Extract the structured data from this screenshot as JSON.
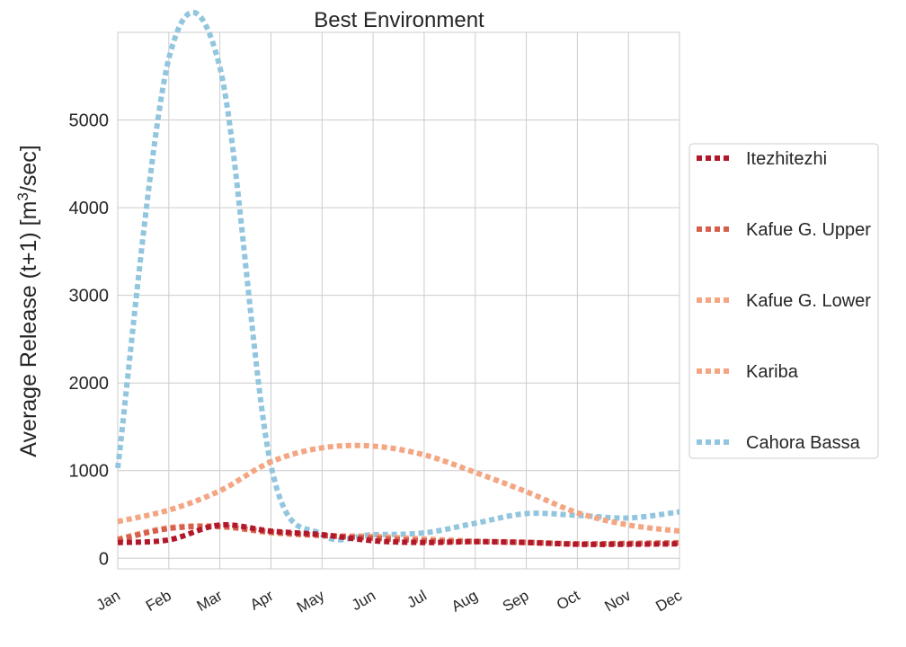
{
  "chart_data": {
    "type": "line",
    "title": "Best Environment",
    "ylabel_main": "Average Release (t+1) [m",
    "ylabel_sup": "3",
    "ylabel_end": "/sec]",
    "xlabel": "",
    "categories": [
      "Jan",
      "Feb",
      "Mar",
      "Apr",
      "May",
      "Jun",
      "Jul",
      "Aug",
      "Sep",
      "Oct",
      "Nov",
      "Dec"
    ],
    "yticks": [
      0,
      1000,
      2000,
      3000,
      4000,
      5000
    ],
    "ylim": [
      -120,
      6000
    ],
    "grid": true,
    "legend_position": "right",
    "line_style": "dotted",
    "series": [
      {
        "name": "Itezhitezhi",
        "color": "#b2182b",
        "values": [
          180,
          210,
          380,
          310,
          270,
          200,
          180,
          190,
          180,
          160,
          160,
          165
        ]
      },
      {
        "name": "Kafue G. Upper",
        "color": "#d6604d",
        "values": [
          210,
          340,
          360,
          300,
          260,
          230,
          200,
          190,
          180,
          165,
          170,
          175
        ]
      },
      {
        "name": "Kafue G. Lower",
        "color": "#f4a582",
        "values": [
          220,
          350,
          365,
          290,
          260,
          250,
          220,
          195,
          185,
          165,
          170,
          180
        ]
      },
      {
        "name": "Kariba",
        "color": "#f4a582",
        "values": [
          420,
          550,
          770,
          1100,
          1260,
          1280,
          1180,
          980,
          760,
          520,
          380,
          310
        ]
      },
      {
        "name": "Cahora Bassa",
        "color": "#92c5de",
        "values": [
          1030,
          5700,
          5600,
          1060,
          270,
          270,
          290,
          400,
          510,
          490,
          460,
          530
        ]
      }
    ]
  }
}
